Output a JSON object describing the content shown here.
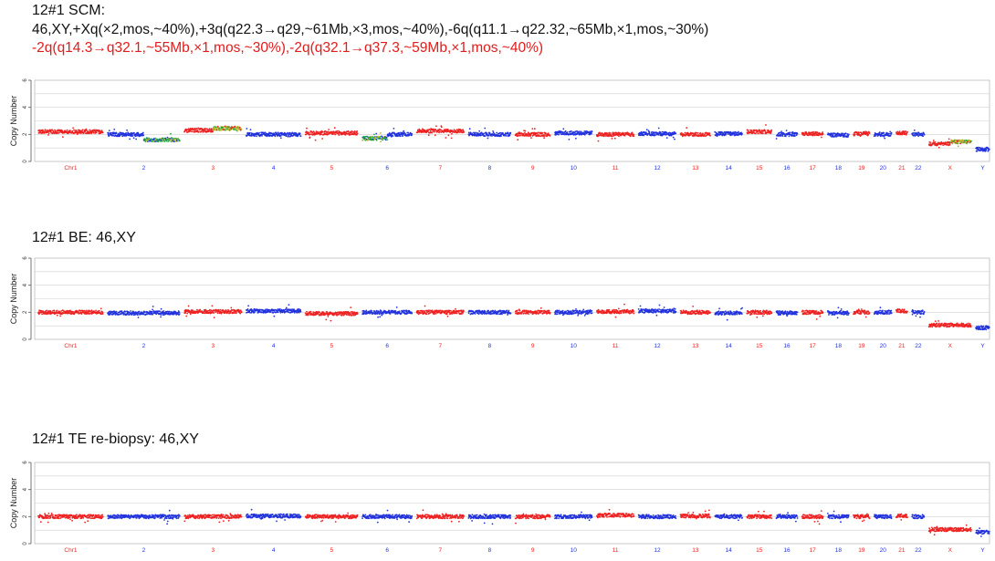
{
  "colors": {
    "odd": "#ee2222",
    "even": "#2233dd",
    "gain": "#b5b51f",
    "loss": "#22aa44",
    "grid": "#cfcfcf",
    "axis": "#555555"
  },
  "panels": [
    {
      "title": "12#1 SCM:",
      "lines": [
        {
          "text": "46,XY,+Xq(×2,mos,~40%),+3q(q22.3→q29,~61Mb,×3,mos,~40%),-6q(q11.1→q22.32,~65Mb,×1,mos,~30%)",
          "color": "#111111"
        },
        {
          "text": "-2q(q14.3→q32.1,~55Mb,×1,mos,~30%),-2q(q32.1→q37.3,~59Mb,×1,mos,~40%)",
          "color": "#e21b1b"
        }
      ]
    },
    {
      "title": "12#1 BE: 46,XY",
      "lines": []
    },
    {
      "title": "12#1 TE re-biopsy: 46,XY",
      "lines": []
    }
  ],
  "chart_data": [
    {
      "type": "scatter",
      "ylabel": "Copy Number",
      "ylim": [
        0,
        6
      ],
      "yticks": [
        "0",
        "2",
        "4",
        "6"
      ],
      "grid": true,
      "chromosomes": [
        "Chr1",
        "2",
        "3",
        "4",
        "5",
        "6",
        "7",
        "8",
        "9",
        "10",
        "11",
        "12",
        "13",
        "14",
        "15",
        "16",
        "17",
        "18",
        "19",
        "20",
        "21",
        "22",
        "X",
        "Y"
      ],
      "segments": [
        {
          "chr": "Chr1",
          "cn": 2.2
        },
        {
          "chr": "2",
          "cn": 2.0
        },
        {
          "chr": "2",
          "cn": 1.6,
          "call": "loss"
        },
        {
          "chr": "3",
          "cn": 2.3
        },
        {
          "chr": "3",
          "cn": 2.45,
          "call": "gain"
        },
        {
          "chr": "4",
          "cn": 2.0
        },
        {
          "chr": "5",
          "cn": 2.1
        },
        {
          "chr": "6",
          "cn": 1.7,
          "call": "loss"
        },
        {
          "chr": "6",
          "cn": 2.0
        },
        {
          "chr": "7",
          "cn": 2.25
        },
        {
          "chr": "8",
          "cn": 2.0
        },
        {
          "chr": "9",
          "cn": 2.0
        },
        {
          "chr": "10",
          "cn": 2.1
        },
        {
          "chr": "11",
          "cn": 2.0
        },
        {
          "chr": "12",
          "cn": 2.05
        },
        {
          "chr": "13",
          "cn": 2.0
        },
        {
          "chr": "14",
          "cn": 2.05
        },
        {
          "chr": "15",
          "cn": 2.2
        },
        {
          "chr": "16",
          "cn": 2.0
        },
        {
          "chr": "17",
          "cn": 2.05
        },
        {
          "chr": "18",
          "cn": 1.95
        },
        {
          "chr": "19",
          "cn": 2.05
        },
        {
          "chr": "20",
          "cn": 2.0
        },
        {
          "chr": "21",
          "cn": 2.1
        },
        {
          "chr": "22",
          "cn": 2.0
        },
        {
          "chr": "X",
          "cn": 1.3
        },
        {
          "chr": "X",
          "cn": 1.45,
          "call": "gain"
        },
        {
          "chr": "Y",
          "cn": 0.9
        }
      ]
    },
    {
      "type": "scatter",
      "ylabel": "Copy Number",
      "ylim": [
        0,
        6
      ],
      "yticks": [
        "0",
        "2",
        "4",
        "6"
      ],
      "grid": true,
      "chromosomes": [
        "Chr1",
        "2",
        "3",
        "4",
        "5",
        "6",
        "7",
        "8",
        "9",
        "10",
        "11",
        "12",
        "13",
        "14",
        "15",
        "16",
        "17",
        "18",
        "19",
        "20",
        "21",
        "22",
        "X",
        "Y"
      ],
      "segments": [
        {
          "chr": "Chr1",
          "cn": 2.0
        },
        {
          "chr": "2",
          "cn": 1.95
        },
        {
          "chr": "3",
          "cn": 2.05
        },
        {
          "chr": "4",
          "cn": 2.1
        },
        {
          "chr": "5",
          "cn": 1.9
        },
        {
          "chr": "6",
          "cn": 2.0
        },
        {
          "chr": "7",
          "cn": 2.0
        },
        {
          "chr": "8",
          "cn": 2.0
        },
        {
          "chr": "9",
          "cn": 2.0
        },
        {
          "chr": "10",
          "cn": 2.0
        },
        {
          "chr": "11",
          "cn": 2.05
        },
        {
          "chr": "12",
          "cn": 2.1
        },
        {
          "chr": "13",
          "cn": 2.0
        },
        {
          "chr": "14",
          "cn": 1.95
        },
        {
          "chr": "15",
          "cn": 2.0
        },
        {
          "chr": "16",
          "cn": 1.95
        },
        {
          "chr": "17",
          "cn": 2.0
        },
        {
          "chr": "18",
          "cn": 1.95
        },
        {
          "chr": "19",
          "cn": 2.0
        },
        {
          "chr": "20",
          "cn": 2.0
        },
        {
          "chr": "21",
          "cn": 2.1
        },
        {
          "chr": "22",
          "cn": 2.0
        },
        {
          "chr": "X",
          "cn": 1.05
        },
        {
          "chr": "Y",
          "cn": 0.85
        }
      ]
    },
    {
      "type": "scatter",
      "ylabel": "Copy Number",
      "ylim": [
        0,
        6
      ],
      "yticks": [
        "0",
        "2",
        "4",
        "6"
      ],
      "grid": true,
      "chromosomes": [
        "Chr1",
        "2",
        "3",
        "4",
        "5",
        "6",
        "7",
        "8",
        "9",
        "10",
        "11",
        "12",
        "13",
        "14",
        "15",
        "16",
        "17",
        "18",
        "19",
        "20",
        "21",
        "22",
        "X",
        "Y"
      ],
      "segments": [
        {
          "chr": "Chr1",
          "cn": 2.0
        },
        {
          "chr": "2",
          "cn": 2.0
        },
        {
          "chr": "3",
          "cn": 2.0
        },
        {
          "chr": "4",
          "cn": 2.05
        },
        {
          "chr": "5",
          "cn": 2.0
        },
        {
          "chr": "6",
          "cn": 2.0
        },
        {
          "chr": "7",
          "cn": 2.0
        },
        {
          "chr": "8",
          "cn": 2.0
        },
        {
          "chr": "9",
          "cn": 2.0
        },
        {
          "chr": "10",
          "cn": 2.0
        },
        {
          "chr": "11",
          "cn": 2.1
        },
        {
          "chr": "12",
          "cn": 2.0
        },
        {
          "chr": "13",
          "cn": 2.05
        },
        {
          "chr": "14",
          "cn": 2.0
        },
        {
          "chr": "15",
          "cn": 2.0
        },
        {
          "chr": "16",
          "cn": 2.0
        },
        {
          "chr": "17",
          "cn": 2.0
        },
        {
          "chr": "18",
          "cn": 2.0
        },
        {
          "chr": "19",
          "cn": 2.0
        },
        {
          "chr": "20",
          "cn": 2.0
        },
        {
          "chr": "21",
          "cn": 2.05
        },
        {
          "chr": "22",
          "cn": 2.0
        },
        {
          "chr": "X",
          "cn": 1.05
        },
        {
          "chr": "Y",
          "cn": 0.85
        }
      ]
    }
  ]
}
